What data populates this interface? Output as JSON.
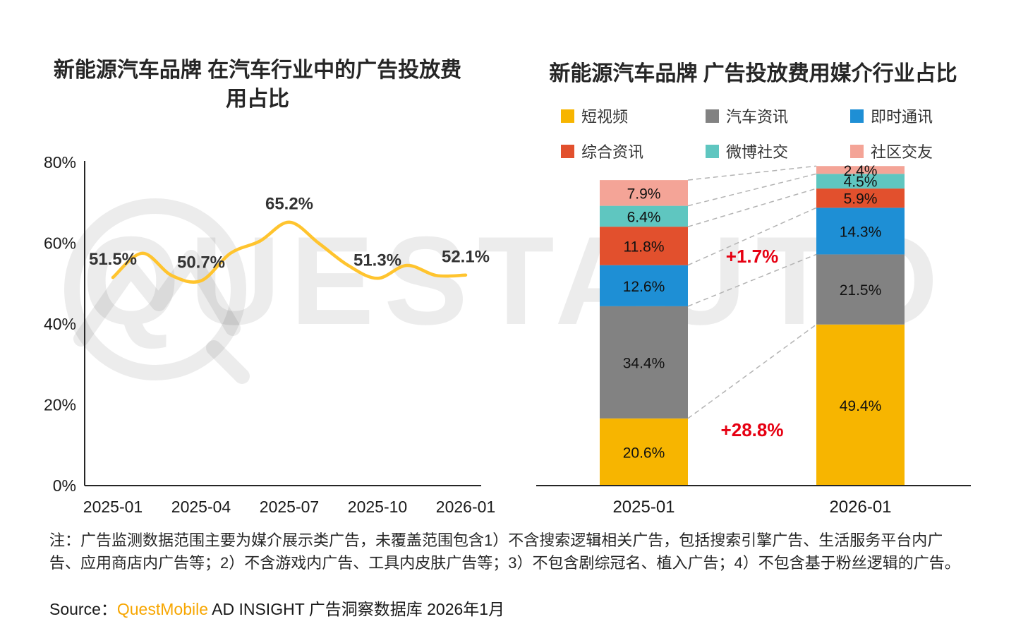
{
  "watermark": {
    "text": "QUESTAUTO"
  },
  "chart_data": [
    {
      "type": "line",
      "title": "新能源汽车品牌 在汽车行业中的广告投放费用占比",
      "x": [
        "2025-01",
        "2025-02",
        "2025-03",
        "2025-04",
        "2025-05",
        "2025-06",
        "2025-07",
        "2025-08",
        "2025-09",
        "2025-10",
        "2025-11",
        "2025-12",
        "2026-01"
      ],
      "values": [
        51.5,
        57.5,
        52.0,
        50.7,
        57.5,
        60.5,
        65.2,
        60.0,
        54.5,
        51.3,
        54.5,
        52.0,
        52.1
      ],
      "point_labels": [
        {
          "index": 0,
          "text": "51.5%"
        },
        {
          "index": 3,
          "text": "50.7%"
        },
        {
          "index": 6,
          "text": "65.2%"
        },
        {
          "index": 9,
          "text": "51.3%"
        },
        {
          "index": 12,
          "text": "52.1%"
        }
      ],
      "ylim": [
        0,
        80
      ],
      "yticks": [
        {
          "value": 0,
          "label": "0%"
        },
        {
          "value": 20,
          "label": "20%"
        },
        {
          "value": 40,
          "label": "40%"
        },
        {
          "value": 60,
          "label": "60%"
        },
        {
          "value": 80,
          "label": "80%"
        }
      ],
      "xticks": [
        {
          "index": 0,
          "label": "2025-01"
        },
        {
          "index": 3,
          "label": "2025-04"
        },
        {
          "index": 6,
          "label": "2025-07"
        },
        {
          "index": 9,
          "label": "2025-10"
        },
        {
          "index": 12,
          "label": "2026-01"
        }
      ],
      "line_color": "#FFC42E",
      "grid": false,
      "legend": "none"
    },
    {
      "type": "bar",
      "subtype": "stacked",
      "title": "新能源汽车品牌 广告投放费用媒介行业占比",
      "categories": [
        "2025-01",
        "2026-01"
      ],
      "series": [
        {
          "name": "短视频",
          "color": "#F7B500",
          "values": [
            20.6,
            49.4
          ]
        },
        {
          "name": "汽车资讯",
          "color": "#828282",
          "values": [
            34.4,
            21.5
          ]
        },
        {
          "name": "即时通讯",
          "color": "#1E8FD5",
          "values": [
            12.6,
            14.3
          ]
        },
        {
          "name": "综合资讯",
          "color": "#E2502D",
          "values": [
            11.8,
            5.9
          ]
        },
        {
          "name": "微博社交",
          "color": "#5FC6C0",
          "values": [
            6.4,
            4.5
          ]
        },
        {
          "name": "社区交友",
          "color": "#F4A497",
          "values": [
            7.9,
            2.4
          ]
        }
      ],
      "annotations": [
        {
          "text": "+1.7%",
          "color": "#E60012"
        },
        {
          "text": "+28.8%",
          "color": "#E60012"
        }
      ],
      "legend_position": "top"
    }
  ],
  "notes": {
    "text": "注：广告监测数据范围主要为媒介展示类广告，未覆盖范围包含1）不含搜索逻辑相关广告，包括搜索引擎广告、生活服务平台内广告、应用商店内广告等；2）不含游戏内广告、工具内皮肤广告等；3）不包含剧综冠名、植入广告；4）不包含基于粉丝逻辑的广告。"
  },
  "source": {
    "prefix": "Source：",
    "brand": "QuestMobile",
    "suffix": " AD INSIGHT 广告洞察数据库 2026年1月"
  }
}
